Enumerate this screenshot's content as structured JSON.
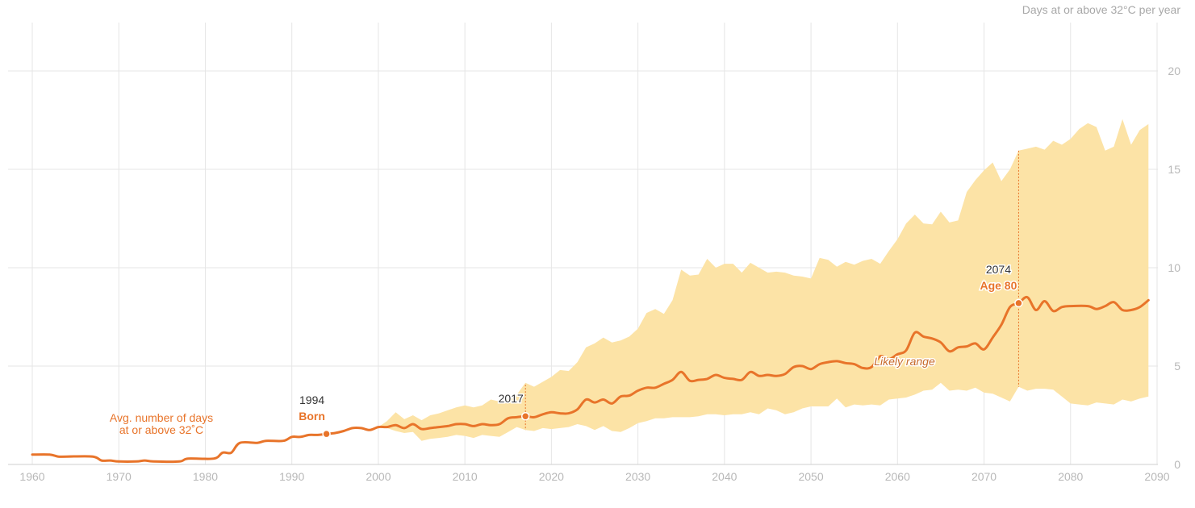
{
  "chart_data": {
    "type": "area",
    "unit_label": "Days at or above 32°C per year",
    "series_label": "Avg. number of days at or above 32˚C",
    "series_label_lines": [
      "Avg. number of days",
      "at or above 32˚C"
    ],
    "range_label": "Likely range",
    "xlim": [
      1959,
      2090
    ],
    "ylim": [
      0,
      22
    ],
    "x_ticks": [
      1960,
      1970,
      1980,
      1990,
      2000,
      2010,
      2020,
      2030,
      2040,
      2050,
      2060,
      2070,
      2080,
      2090
    ],
    "y_ticks": [
      0,
      5,
      10,
      15,
      20
    ],
    "grid": true,
    "colors": {
      "line": "#e8742a",
      "band": "#fce3a6",
      "grid": "#e6e6e6",
      "ticks": "#b8b8b8"
    },
    "median": [
      [
        1960,
        0.5
      ],
      [
        1962,
        0.5
      ],
      [
        1963,
        0.4
      ],
      [
        1964,
        0.4
      ],
      [
        1967,
        0.4
      ],
      [
        1968,
        0.2
      ],
      [
        1969,
        0.2
      ],
      [
        1970,
        0.15
      ],
      [
        1972,
        0.15
      ],
      [
        1973,
        0.2
      ],
      [
        1974,
        0.15
      ],
      [
        1977,
        0.15
      ],
      [
        1978,
        0.3
      ],
      [
        1981,
        0.3
      ],
      [
        1982,
        0.6
      ],
      [
        1983,
        0.6
      ],
      [
        1984,
        1.1
      ],
      [
        1986,
        1.1
      ],
      [
        1987,
        1.2
      ],
      [
        1989,
        1.2
      ],
      [
        1990,
        1.4
      ],
      [
        1991,
        1.4
      ],
      [
        1992,
        1.5
      ],
      [
        1993,
        1.5
      ],
      [
        1994,
        1.55
      ],
      [
        1995,
        1.6
      ],
      [
        1996,
        1.7
      ],
      [
        1997,
        1.85
      ],
      [
        1998,
        1.85
      ],
      [
        1999,
        1.75
      ],
      [
        2000,
        1.9
      ],
      [
        2001,
        1.9
      ],
      [
        2002,
        2.0
      ],
      [
        2003,
        1.85
      ],
      [
        2004,
        2.05
      ],
      [
        2005,
        1.8
      ],
      [
        2006,
        1.85
      ],
      [
        2007,
        1.9
      ],
      [
        2008,
        1.95
      ],
      [
        2009,
        2.05
      ],
      [
        2010,
        2.05
      ],
      [
        2011,
        1.95
      ],
      [
        2012,
        2.05
      ],
      [
        2013,
        2.0
      ],
      [
        2014,
        2.05
      ],
      [
        2015,
        2.35
      ],
      [
        2016,
        2.4
      ],
      [
        2017,
        2.45
      ],
      [
        2018,
        2.4
      ],
      [
        2019,
        2.55
      ],
      [
        2020,
        2.65
      ],
      [
        2021,
        2.6
      ],
      [
        2022,
        2.6
      ],
      [
        2023,
        2.8
      ],
      [
        2024,
        3.3
      ],
      [
        2025,
        3.15
      ],
      [
        2026,
        3.3
      ],
      [
        2027,
        3.1
      ],
      [
        2028,
        3.45
      ],
      [
        2029,
        3.5
      ],
      [
        2030,
        3.75
      ],
      [
        2031,
        3.9
      ],
      [
        2032,
        3.9
      ],
      [
        2033,
        4.1
      ],
      [
        2034,
        4.3
      ],
      [
        2035,
        4.7
      ],
      [
        2036,
        4.25
      ],
      [
        2037,
        4.3
      ],
      [
        2038,
        4.35
      ],
      [
        2039,
        4.55
      ],
      [
        2040,
        4.4
      ],
      [
        2041,
        4.35
      ],
      [
        2042,
        4.3
      ],
      [
        2043,
        4.7
      ],
      [
        2044,
        4.5
      ],
      [
        2045,
        4.55
      ],
      [
        2046,
        4.5
      ],
      [
        2047,
        4.6
      ],
      [
        2048,
        4.95
      ],
      [
        2049,
        5.0
      ],
      [
        2050,
        4.85
      ],
      [
        2051,
        5.1
      ],
      [
        2052,
        5.2
      ],
      [
        2053,
        5.25
      ],
      [
        2054,
        5.15
      ],
      [
        2055,
        5.1
      ],
      [
        2056,
        4.9
      ],
      [
        2057,
        4.95
      ],
      [
        2058,
        5.5
      ],
      [
        2059,
        5.35
      ],
      [
        2060,
        5.6
      ],
      [
        2061,
        5.8
      ],
      [
        2062,
        6.7
      ],
      [
        2063,
        6.5
      ],
      [
        2064,
        6.4
      ],
      [
        2065,
        6.2
      ],
      [
        2066,
        5.75
      ],
      [
        2067,
        5.95
      ],
      [
        2068,
        6.0
      ],
      [
        2069,
        6.15
      ],
      [
        2070,
        5.85
      ],
      [
        2071,
        6.45
      ],
      [
        2072,
        7.1
      ],
      [
        2073,
        8.0
      ],
      [
        2074,
        8.2
      ],
      [
        2075,
        8.5
      ],
      [
        2076,
        7.85
      ],
      [
        2077,
        8.3
      ],
      [
        2078,
        7.8
      ],
      [
        2079,
        8.0
      ],
      [
        2080,
        8.05
      ],
      [
        2082,
        8.05
      ],
      [
        2083,
        7.9
      ],
      [
        2084,
        8.05
      ],
      [
        2085,
        8.25
      ],
      [
        2086,
        7.85
      ],
      [
        2087,
        7.85
      ],
      [
        2088,
        8.0
      ],
      [
        2089,
        8.35
      ]
    ],
    "range_upper": [
      [
        2000,
        1.9
      ],
      [
        2001,
        2.2
      ],
      [
        2002,
        2.65
      ],
      [
        2003,
        2.3
      ],
      [
        2004,
        2.5
      ],
      [
        2005,
        2.25
      ],
      [
        2006,
        2.5
      ],
      [
        2007,
        2.6
      ],
      [
        2008,
        2.75
      ],
      [
        2009,
        2.9
      ],
      [
        2010,
        3.0
      ],
      [
        2011,
        2.9
      ],
      [
        2012,
        3.0
      ],
      [
        2013,
        3.3
      ],
      [
        2014,
        3.2
      ],
      [
        2015,
        3.3
      ],
      [
        2016,
        3.55
      ],
      [
        2017,
        4.15
      ],
      [
        2018,
        3.95
      ],
      [
        2019,
        4.2
      ],
      [
        2020,
        4.45
      ],
      [
        2021,
        4.8
      ],
      [
        2022,
        4.75
      ],
      [
        2023,
        5.2
      ],
      [
        2024,
        5.95
      ],
      [
        2025,
        6.15
      ],
      [
        2026,
        6.45
      ],
      [
        2027,
        6.2
      ],
      [
        2028,
        6.3
      ],
      [
        2029,
        6.5
      ],
      [
        2030,
        6.9
      ],
      [
        2031,
        7.7
      ],
      [
        2032,
        7.9
      ],
      [
        2033,
        7.65
      ],
      [
        2034,
        8.35
      ],
      [
        2035,
        9.9
      ],
      [
        2036,
        9.6
      ],
      [
        2037,
        9.65
      ],
      [
        2038,
        10.45
      ],
      [
        2039,
        10.0
      ],
      [
        2040,
        10.2
      ],
      [
        2041,
        10.2
      ],
      [
        2042,
        9.75
      ],
      [
        2043,
        10.25
      ],
      [
        2044,
        10.0
      ],
      [
        2045,
        9.75
      ],
      [
        2046,
        9.8
      ],
      [
        2047,
        9.75
      ],
      [
        2048,
        9.6
      ],
      [
        2049,
        9.55
      ],
      [
        2050,
        9.45
      ],
      [
        2051,
        10.5
      ],
      [
        2052,
        10.4
      ],
      [
        2053,
        10.05
      ],
      [
        2054,
        10.3
      ],
      [
        2055,
        10.15
      ],
      [
        2056,
        10.35
      ],
      [
        2057,
        10.45
      ],
      [
        2058,
        10.2
      ],
      [
        2059,
        10.85
      ],
      [
        2060,
        11.45
      ],
      [
        2061,
        12.25
      ],
      [
        2062,
        12.7
      ],
      [
        2063,
        12.25
      ],
      [
        2064,
        12.2
      ],
      [
        2065,
        12.85
      ],
      [
        2066,
        12.3
      ],
      [
        2067,
        12.4
      ],
      [
        2068,
        13.85
      ],
      [
        2069,
        14.45
      ],
      [
        2070,
        14.95
      ],
      [
        2071,
        15.35
      ],
      [
        2072,
        14.4
      ],
      [
        2073,
        15.0
      ],
      [
        2074,
        15.95
      ],
      [
        2075,
        16.05
      ],
      [
        2076,
        16.15
      ],
      [
        2077,
        16.0
      ],
      [
        2078,
        16.45
      ],
      [
        2079,
        16.25
      ],
      [
        2080,
        16.55
      ],
      [
        2081,
        17.05
      ],
      [
        2082,
        17.35
      ],
      [
        2083,
        17.15
      ],
      [
        2084,
        15.95
      ],
      [
        2085,
        16.15
      ],
      [
        2086,
        17.55
      ],
      [
        2087,
        16.25
      ],
      [
        2088,
        17.0
      ],
      [
        2089,
        17.3
      ]
    ],
    "range_lower": [
      [
        2000,
        1.9
      ],
      [
        2001,
        1.85
      ],
      [
        2002,
        1.7
      ],
      [
        2003,
        1.6
      ],
      [
        2004,
        1.65
      ],
      [
        2005,
        1.2
      ],
      [
        2006,
        1.3
      ],
      [
        2007,
        1.35
      ],
      [
        2008,
        1.4
      ],
      [
        2009,
        1.5
      ],
      [
        2010,
        1.45
      ],
      [
        2011,
        1.35
      ],
      [
        2012,
        1.5
      ],
      [
        2013,
        1.45
      ],
      [
        2014,
        1.4
      ],
      [
        2015,
        1.65
      ],
      [
        2016,
        1.9
      ],
      [
        2017,
        1.75
      ],
      [
        2018,
        1.7
      ],
      [
        2019,
        1.85
      ],
      [
        2020,
        1.8
      ],
      [
        2021,
        1.85
      ],
      [
        2022,
        1.9
      ],
      [
        2023,
        2.05
      ],
      [
        2024,
        1.95
      ],
      [
        2025,
        1.75
      ],
      [
        2026,
        1.95
      ],
      [
        2027,
        1.7
      ],
      [
        2028,
        1.65
      ],
      [
        2029,
        1.85
      ],
      [
        2030,
        2.1
      ],
      [
        2031,
        2.2
      ],
      [
        2032,
        2.35
      ],
      [
        2033,
        2.35
      ],
      [
        2034,
        2.4
      ],
      [
        2035,
        2.4
      ],
      [
        2036,
        2.4
      ],
      [
        2037,
        2.45
      ],
      [
        2038,
        2.55
      ],
      [
        2039,
        2.55
      ],
      [
        2040,
        2.5
      ],
      [
        2041,
        2.55
      ],
      [
        2042,
        2.55
      ],
      [
        2043,
        2.65
      ],
      [
        2044,
        2.55
      ],
      [
        2045,
        2.85
      ],
      [
        2046,
        2.75
      ],
      [
        2047,
        2.55
      ],
      [
        2048,
        2.65
      ],
      [
        2049,
        2.85
      ],
      [
        2050,
        2.95
      ],
      [
        2051,
        2.95
      ],
      [
        2052,
        2.95
      ],
      [
        2053,
        3.35
      ],
      [
        2054,
        2.9
      ],
      [
        2055,
        3.05
      ],
      [
        2056,
        3.0
      ],
      [
        2057,
        3.05
      ],
      [
        2058,
        3.0
      ],
      [
        2059,
        3.3
      ],
      [
        2060,
        3.35
      ],
      [
        2061,
        3.4
      ],
      [
        2062,
        3.55
      ],
      [
        2063,
        3.75
      ],
      [
        2064,
        3.8
      ],
      [
        2065,
        4.15
      ],
      [
        2066,
        3.75
      ],
      [
        2067,
        3.8
      ],
      [
        2068,
        3.75
      ],
      [
        2069,
        3.9
      ],
      [
        2070,
        3.65
      ],
      [
        2071,
        3.6
      ],
      [
        2072,
        3.4
      ],
      [
        2073,
        3.2
      ],
      [
        2074,
        3.95
      ],
      [
        2075,
        3.75
      ],
      [
        2076,
        3.85
      ],
      [
        2077,
        3.85
      ],
      [
        2078,
        3.8
      ],
      [
        2079,
        3.45
      ],
      [
        2080,
        3.1
      ],
      [
        2081,
        3.05
      ],
      [
        2082,
        3.0
      ],
      [
        2083,
        3.15
      ],
      [
        2084,
        3.1
      ],
      [
        2085,
        3.05
      ],
      [
        2086,
        3.3
      ],
      [
        2087,
        3.2
      ],
      [
        2088,
        3.35
      ],
      [
        2089,
        3.45
      ]
    ],
    "annotations": [
      {
        "year_label": "1994",
        "event": "Born",
        "x": 1994,
        "y": 1.55,
        "leader": false
      },
      {
        "year_label": "2017",
        "event": "",
        "x": 2017,
        "y": 2.45,
        "leader": true,
        "leader_to_y": 4.05
      },
      {
        "year_label": "2074",
        "event": "Age 80",
        "x": 2074,
        "y": 8.2,
        "leader": true,
        "leader_to_y": 15.95
      }
    ]
  }
}
